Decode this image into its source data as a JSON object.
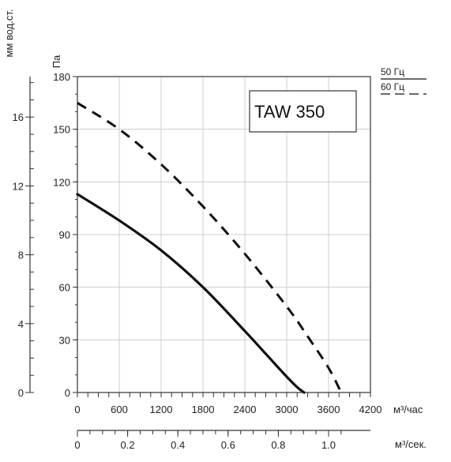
{
  "chart_data": {
    "type": "line",
    "title": "TAW 350",
    "xlabel": "м³/час",
    "ylabel": "Па",
    "x2label": "м³/сек.",
    "y2label": "мм вод.ст.",
    "xlim": [
      0,
      4200
    ],
    "ylim": [
      0,
      180
    ],
    "x2lim": [
      0,
      1.1667
    ],
    "y2lim": [
      0,
      18.35
    ],
    "x_ticks": [
      0,
      600,
      1200,
      1800,
      2400,
      3000,
      3600,
      4200
    ],
    "y_ticks": [
      0,
      30,
      60,
      90,
      120,
      150,
      180
    ],
    "x2_ticks": [
      "0",
      "0.2",
      "0.4",
      "0.6",
      "0.8",
      "1.0"
    ],
    "y2_ticks": [
      "0",
      "4",
      "8",
      "12",
      "16"
    ],
    "grid": true,
    "legend_position": "top-right",
    "series": [
      {
        "name": "50 Гц",
        "style": "solid",
        "x": [
          0,
          600,
          1200,
          1800,
          2400,
          2700,
          3000,
          3150,
          3250
        ],
        "y": [
          113,
          98,
          81,
          60,
          35,
          22,
          9,
          3,
          0
        ]
      },
      {
        "name": "60 Гц",
        "style": "dashed",
        "x": [
          0,
          600,
          1200,
          1800,
          2400,
          3000,
          3300,
          3600,
          3780
        ],
        "y": [
          165,
          150,
          130,
          106,
          79,
          49,
          32,
          14,
          0
        ]
      }
    ],
    "colors": {
      "line": "#111111",
      "grid": "#cccccc",
      "axis": "#333333"
    }
  }
}
